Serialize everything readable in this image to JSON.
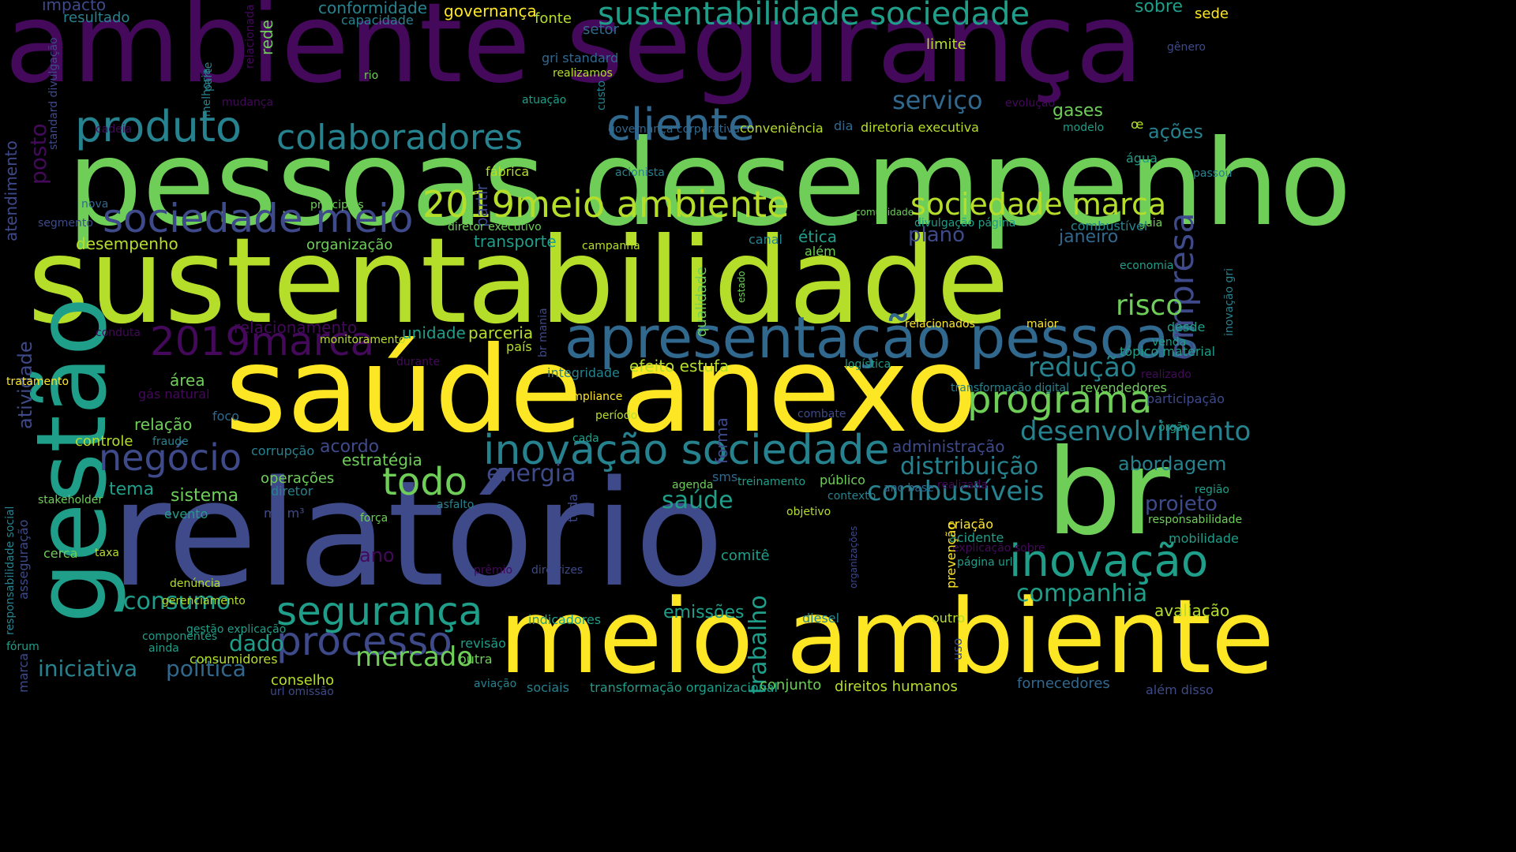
{
  "palette": {
    "purple": "#44095a",
    "indigo": "#3e4a89",
    "blue": "#31688e",
    "teal": "#26828e",
    "green": "#1f9e89",
    "lime": "#6ece58",
    "yellowgreen": "#b5de2b",
    "yellow": "#fde725"
  },
  "words": [
    {
      "text": "ambiente segurança",
      "color": "purple"
    },
    {
      "text": "pessoas desempenho",
      "color": "lime"
    },
    {
      "text": "sustentabilidade",
      "color": "yellowgreen"
    },
    {
      "text": "saúde anexo",
      "color": "yellow"
    },
    {
      "text": "relatório",
      "color": "indigo"
    },
    {
      "text": "gestão",
      "color": "green"
    },
    {
      "text": "br",
      "color": "lime"
    },
    {
      "text": "meio ambiente",
      "color": "yellow"
    },
    {
      "text": "apresentação pessoas",
      "color": "blue"
    },
    {
      "text": "inovação sociedade",
      "color": "teal"
    },
    {
      "text": "produto",
      "color": "teal"
    },
    {
      "text": "colaboradores",
      "color": "teal"
    },
    {
      "text": "cliente",
      "color": "blue"
    },
    {
      "text": "sustentabilidade sociedade",
      "color": "green"
    },
    {
      "text": "sociedade meio",
      "color": "indigo"
    },
    {
      "text": "2019meio ambiente",
      "color": "yellowgreen"
    },
    {
      "text": "sociedade marca",
      "color": "yellowgreen"
    },
    {
      "text": "empresa",
      "color": "indigo"
    },
    {
      "text": "2019marca",
      "color": "purple"
    },
    {
      "text": "programa",
      "color": "lime"
    },
    {
      "text": "negócio",
      "color": "indigo"
    },
    {
      "text": "todo",
      "color": "lime"
    },
    {
      "text": "inovação",
      "color": "green"
    },
    {
      "text": "segurança",
      "color": "green"
    },
    {
      "text": "processo",
      "color": "indigo"
    },
    {
      "text": "risco",
      "color": "lime"
    },
    {
      "text": "redução",
      "color": "teal"
    },
    {
      "text": "desenvolvimento",
      "color": "teal"
    },
    {
      "text": "serviço",
      "color": "blue"
    },
    {
      "text": "combustíveis",
      "color": "teal"
    },
    {
      "text": "consumo",
      "color": "green"
    },
    {
      "text": "mercado",
      "color": "lime"
    },
    {
      "text": "iniciativa",
      "color": "teal"
    },
    {
      "text": "política",
      "color": "blue"
    },
    {
      "text": "dado",
      "color": "green"
    },
    {
      "text": "trabalho",
      "color": "green"
    },
    {
      "text": "companhia",
      "color": "green"
    },
    {
      "text": "distribuição",
      "color": "teal"
    },
    {
      "text": "energia",
      "color": "indigo"
    },
    {
      "text": "saúde",
      "color": "green"
    },
    {
      "text": "acordo",
      "color": "indigo"
    },
    {
      "text": "sistema",
      "color": "lime"
    },
    {
      "text": "tema",
      "color": "green"
    },
    {
      "text": "abordagem",
      "color": "teal"
    },
    {
      "text": "projeto",
      "color": "indigo"
    },
    {
      "text": "ano",
      "color": "purple"
    },
    {
      "text": "emissões",
      "color": "green"
    },
    {
      "text": "avaliação",
      "color": "yellowgreen"
    },
    {
      "text": "plano",
      "color": "indigo"
    },
    {
      "text": "janeiro",
      "color": "blue"
    },
    {
      "text": "ações",
      "color": "teal"
    },
    {
      "text": "gases",
      "color": "lime"
    },
    {
      "text": "sobre",
      "color": "green"
    },
    {
      "text": "sede",
      "color": "yellow"
    },
    {
      "text": "impacto",
      "color": "indigo"
    },
    {
      "text": "resultado",
      "color": "teal"
    },
    {
      "text": "conformidade",
      "color": "teal"
    },
    {
      "text": "capacidade",
      "color": "teal"
    },
    {
      "text": "governança",
      "color": "yellow"
    },
    {
      "text": "fonte",
      "color": "yellowgreen"
    },
    {
      "text": "setor",
      "color": "blue"
    },
    {
      "text": "limite",
      "color": "yellowgreen"
    },
    {
      "text": "gênero",
      "color": "indigo"
    },
    {
      "text": "gri standard",
      "color": "blue"
    },
    {
      "text": "rio",
      "color": "lime"
    },
    {
      "text": "realizamos",
      "color": "yellowgreen"
    },
    {
      "text": "rede",
      "color": "lime"
    },
    {
      "text": "parte",
      "color": "teal"
    },
    {
      "text": "relacionada",
      "color": "purple"
    },
    {
      "text": "melhoria",
      "color": "teal"
    },
    {
      "text": "mudança",
      "color": "purple"
    },
    {
      "text": "atuação",
      "color": "green"
    },
    {
      "text": "custo",
      "color": "teal"
    },
    {
      "text": "evolução",
      "color": "purple"
    },
    {
      "text": "modelo",
      "color": "green"
    },
    {
      "text": "œ",
      "color": "yellowgreen"
    },
    {
      "text": "cadeia",
      "color": "purple"
    },
    {
      "text": "governança corporativa",
      "color": "blue"
    },
    {
      "text": "conveniência",
      "color": "yellowgreen"
    },
    {
      "text": "dia",
      "color": "blue"
    },
    {
      "text": "diretoria executiva",
      "color": "yellowgreen"
    },
    {
      "text": "posto",
      "color": "purple"
    },
    {
      "text": "atendimento",
      "color": "indigo"
    },
    {
      "text": "standard divulgação",
      "color": "indigo"
    },
    {
      "text": "fábrica",
      "color": "yellowgreen"
    },
    {
      "text": "partir",
      "color": "indigo"
    },
    {
      "text": "acionista",
      "color": "teal"
    },
    {
      "text": "água",
      "color": "green"
    },
    {
      "text": "passou",
      "color": "teal"
    },
    {
      "text": "segmento",
      "color": "indigo"
    },
    {
      "text": "nova",
      "color": "blue"
    },
    {
      "text": "principais",
      "color": "lime"
    },
    {
      "text": "diretor executivo",
      "color": "lime"
    },
    {
      "text": "transporte",
      "color": "green"
    },
    {
      "text": "campanha",
      "color": "yellowgreen"
    },
    {
      "text": "canal",
      "color": "teal"
    },
    {
      "text": "ética",
      "color": "green"
    },
    {
      "text": "além",
      "color": "lime"
    },
    {
      "text": "comunidade",
      "color": "lime"
    },
    {
      "text": "divulgação página",
      "color": "green"
    },
    {
      "text": "guia",
      "color": "lime"
    },
    {
      "text": "combustível",
      "color": "teal"
    },
    {
      "text": "economia",
      "color": "green"
    },
    {
      "text": "inovação gri",
      "color": "teal"
    },
    {
      "text": "desempenho",
      "color": "yellowgreen"
    },
    {
      "text": "organização",
      "color": "lime"
    },
    {
      "text": "qualidade",
      "color": "lime"
    },
    {
      "text": "estado",
      "color": "lime"
    },
    {
      "text": "atividade",
      "color": "indigo"
    },
    {
      "text": "relacionamento",
      "color": "purple"
    },
    {
      "text": "conduta",
      "color": "purple"
    },
    {
      "text": "monitoramento",
      "color": "yellowgreen"
    },
    {
      "text": "unidade",
      "color": "green"
    },
    {
      "text": "parceria",
      "color": "yellowgreen"
    },
    {
      "text": "país",
      "color": "yellowgreen"
    },
    {
      "text": "br mania",
      "color": "indigo"
    },
    {
      "text": "relacionados",
      "color": "yellow"
    },
    {
      "text": "maior",
      "color": "yellow"
    },
    {
      "text": "desde",
      "color": "green"
    },
    {
      "text": "venda",
      "color": "green"
    },
    {
      "text": "tópico material",
      "color": "green"
    },
    {
      "text": "tratamento",
      "color": "yellow"
    },
    {
      "text": "durante",
      "color": "purple"
    },
    {
      "text": "integridade",
      "color": "teal"
    },
    {
      "text": "efeito estufa",
      "color": "yellowgreen"
    },
    {
      "text": "logística",
      "color": "green"
    },
    {
      "text": "realizado",
      "color": "purple"
    },
    {
      "text": "área",
      "color": "lime"
    },
    {
      "text": "gás natural",
      "color": "purple"
    },
    {
      "text": "transformação digital",
      "color": "teal"
    },
    {
      "text": "revendedores",
      "color": "lime"
    },
    {
      "text": "participação",
      "color": "indigo"
    },
    {
      "text": "relação",
      "color": "lime"
    },
    {
      "text": "foco",
      "color": "blue"
    },
    {
      "text": "compliance",
      "color": "yellow"
    },
    {
      "text": "combate",
      "color": "indigo"
    },
    {
      "text": "período",
      "color": "yellowgreen"
    },
    {
      "text": "forma",
      "color": "indigo"
    },
    {
      "text": "controle",
      "color": "yellowgreen"
    },
    {
      "text": "fraude",
      "color": "teal"
    },
    {
      "text": "cada",
      "color": "green"
    },
    {
      "text": "administração",
      "color": "indigo"
    },
    {
      "text": "órgão",
      "color": "green"
    },
    {
      "text": "corrupção",
      "color": "teal"
    },
    {
      "text": "estratégia",
      "color": "lime"
    },
    {
      "text": "operações",
      "color": "lime"
    },
    {
      "text": "agenda",
      "color": "lime"
    },
    {
      "text": "sms",
      "color": "blue"
    },
    {
      "text": "treinamento",
      "color": "green"
    },
    {
      "text": "público",
      "color": "lime"
    },
    {
      "text": "ano base",
      "color": "blue"
    },
    {
      "text": "realizada",
      "color": "purple"
    },
    {
      "text": "diretor",
      "color": "teal"
    },
    {
      "text": "região",
      "color": "green"
    },
    {
      "text": "responsabilidade social",
      "color": "teal"
    },
    {
      "text": "stakeholder",
      "color": "lime"
    },
    {
      "text": "asfalto",
      "color": "teal"
    },
    {
      "text": "toda",
      "color": "indigo"
    },
    {
      "text": "contexto",
      "color": "teal"
    },
    {
      "text": "responsabilidade",
      "color": "lime"
    },
    {
      "text": "evento",
      "color": "green"
    },
    {
      "text": "mil m³",
      "color": "indigo"
    },
    {
      "text": "força",
      "color": "lime"
    },
    {
      "text": "objetivo",
      "color": "yellowgreen"
    },
    {
      "text": "criação",
      "color": "yellow"
    },
    {
      "text": "acidente",
      "color": "green"
    },
    {
      "text": "mobilidade",
      "color": "green"
    },
    {
      "text": "cerca",
      "color": "lime"
    },
    {
      "text": "taxa",
      "color": "yellowgreen"
    },
    {
      "text": "comitê",
      "color": "green"
    },
    {
      "text": "organizações",
      "color": "indigo"
    },
    {
      "text": "explicação sobre",
      "color": "purple"
    },
    {
      "text": "prevenção",
      "color": "yellow"
    },
    {
      "text": "página url",
      "color": "green"
    },
    {
      "text": "asseguração",
      "color": "indigo"
    },
    {
      "text": "prêmio",
      "color": "purple"
    },
    {
      "text": "diretrizes",
      "color": "indigo"
    },
    {
      "text": "denúncia",
      "color": "yellowgreen"
    },
    {
      "text": "gerenciamento",
      "color": "yellowgreen"
    },
    {
      "text": "indicadores",
      "color": "green"
    },
    {
      "text": "diesel",
      "color": "teal"
    },
    {
      "text": "outro",
      "color": "yellowgreen"
    },
    {
      "text": "componentes",
      "color": "green"
    },
    {
      "text": "gestão explicação",
      "color": "green"
    },
    {
      "text": "ainda",
      "color": "green"
    },
    {
      "text": "revisão",
      "color": "green"
    },
    {
      "text": "uso",
      "color": "indigo"
    },
    {
      "text": "fórum",
      "color": "green"
    },
    {
      "text": "consumidores",
      "color": "yellowgreen"
    },
    {
      "text": "outra",
      "color": "lime"
    },
    {
      "text": "marca",
      "color": "indigo"
    },
    {
      "text": "conselho",
      "color": "yellowgreen"
    },
    {
      "text": "conjunto",
      "color": "lime"
    },
    {
      "text": "url omissão",
      "color": "indigo"
    },
    {
      "text": "aviação",
      "color": "teal"
    },
    {
      "text": "sociais",
      "color": "teal"
    },
    {
      "text": "transformação organizacional",
      "color": "green"
    },
    {
      "text": "direitos humanos",
      "color": "yellowgreen"
    },
    {
      "text": "fornecedores",
      "color": "blue"
    },
    {
      "text": "além disso",
      "color": "indigo"
    }
  ]
}
